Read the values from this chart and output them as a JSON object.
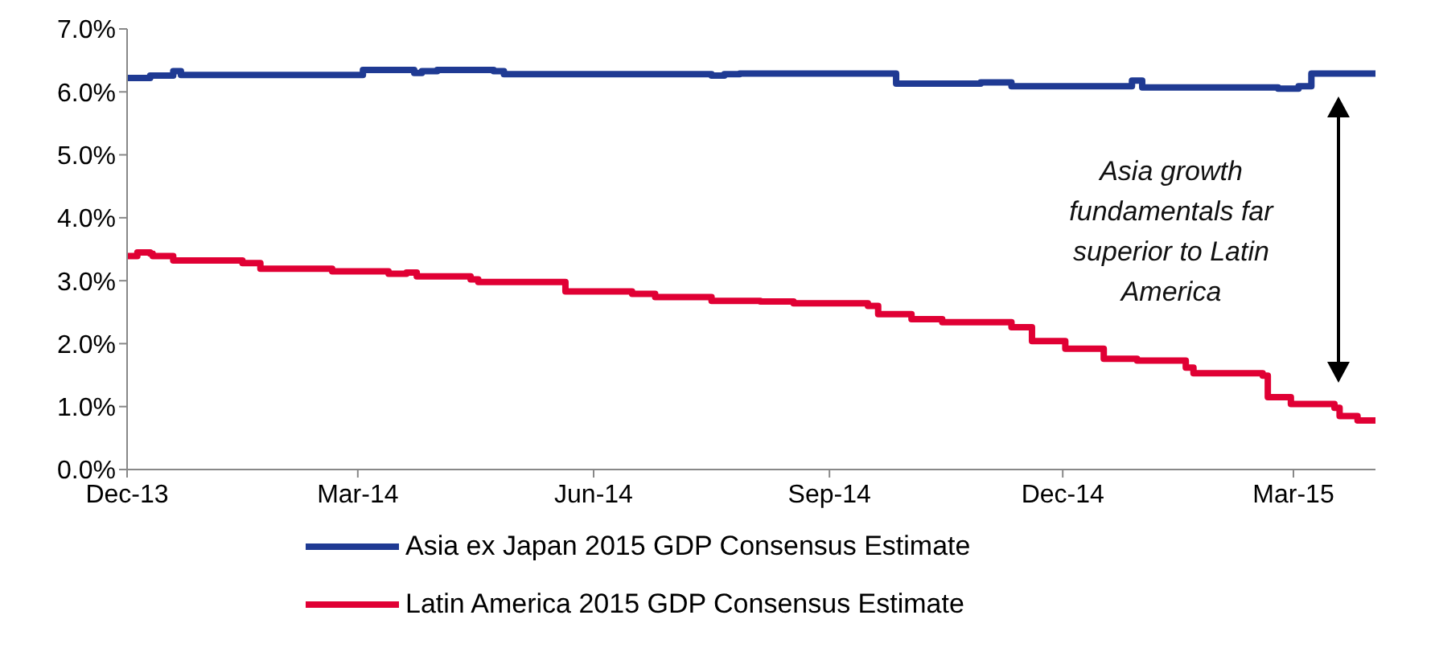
{
  "chart_data": {
    "type": "step",
    "legend": "bottom",
    "marker": "none",
    "line_style": "solid",
    "grid": false,
    "xlim": [
      "2013-12-01",
      "2015-04-02"
    ],
    "xticks": [
      {
        "value": "2013-12-01",
        "label": "Dec-13"
      },
      {
        "value": "2014-03-01",
        "label": "Mar-14"
      },
      {
        "value": "2014-06-01",
        "label": "Jun-14"
      },
      {
        "value": "2014-09-01",
        "label": "Sep-14"
      },
      {
        "value": "2014-12-01",
        "label": "Dec-14"
      },
      {
        "value": "2015-03-01",
        "label": "Mar-15"
      }
    ],
    "ylim": [
      0,
      7
    ],
    "yticks": [
      {
        "value": 0,
        "label": "0.0%"
      },
      {
        "value": 1,
        "label": "1.0%"
      },
      {
        "value": 2,
        "label": "2.0%"
      },
      {
        "value": 3,
        "label": "3.0%"
      },
      {
        "value": 4,
        "label": "4.0%"
      },
      {
        "value": 5,
        "label": "5.0%"
      },
      {
        "value": 6,
        "label": "6.0%"
      },
      {
        "value": 7,
        "label": "7.0%"
      }
    ],
    "annotations": [
      "Asia growth fundamentals far superior to Latin America"
    ],
    "series": [
      {
        "name": "Asia ex Japan 2015 GDP Consensus Estimate",
        "color": "#1f3a93",
        "x": [
          "2013-12-01",
          "2013-12-10",
          "2013-12-19",
          "2013-12-22",
          "2014-02-25",
          "2014-03-03",
          "2014-03-18",
          "2014-03-23",
          "2014-03-26",
          "2014-04-01",
          "2014-04-23",
          "2014-04-27",
          "2014-07-17",
          "2014-07-22",
          "2014-07-28",
          "2014-09-21",
          "2014-09-27",
          "2014-10-30",
          "2014-11-11",
          "2014-12-25",
          "2014-12-28",
          "2015-01-01",
          "2015-02-23",
          "2015-03-03",
          "2015-03-08",
          "2015-04-02"
        ],
        "values": [
          6.22,
          6.26,
          6.33,
          6.27,
          6.27,
          6.35,
          6.35,
          6.3,
          6.33,
          6.35,
          6.33,
          6.28,
          6.26,
          6.28,
          6.29,
          6.29,
          6.13,
          6.15,
          6.09,
          6.09,
          6.18,
          6.07,
          6.05,
          6.09,
          6.29,
          6.28
        ]
      },
      {
        "name": "Latin America 2015 GDP Consensus Estimate",
        "color": "#e00034",
        "x": [
          "2013-12-01",
          "2013-12-05",
          "2013-12-10",
          "2013-12-11",
          "2013-12-19",
          "2014-01-15",
          "2014-01-22",
          "2014-02-19",
          "2014-03-13",
          "2014-03-20",
          "2014-03-24",
          "2014-04-14",
          "2014-04-17",
          "2014-05-21",
          "2014-06-16",
          "2014-06-25",
          "2014-07-17",
          "2014-08-05",
          "2014-08-18",
          "2014-09-16",
          "2014-09-20",
          "2014-10-03",
          "2014-10-15",
          "2014-11-11",
          "2014-11-19",
          "2014-12-02",
          "2014-12-17",
          "2014-12-30",
          "2015-01-18",
          "2015-01-21",
          "2015-02-17",
          "2015-02-19",
          "2015-02-28",
          "2015-03-17",
          "2015-03-19",
          "2015-03-26",
          "2015-04-02"
        ],
        "values": [
          3.39,
          3.45,
          3.43,
          3.39,
          3.32,
          3.28,
          3.19,
          3.15,
          3.11,
          3.13,
          3.07,
          3.02,
          2.98,
          2.83,
          2.79,
          2.74,
          2.68,
          2.67,
          2.64,
          2.6,
          2.47,
          2.39,
          2.34,
          2.26,
          2.04,
          1.92,
          1.76,
          1.73,
          1.62,
          1.53,
          1.49,
          1.15,
          1.04,
          0.98,
          0.85,
          0.78,
          0.78
        ]
      }
    ]
  }
}
